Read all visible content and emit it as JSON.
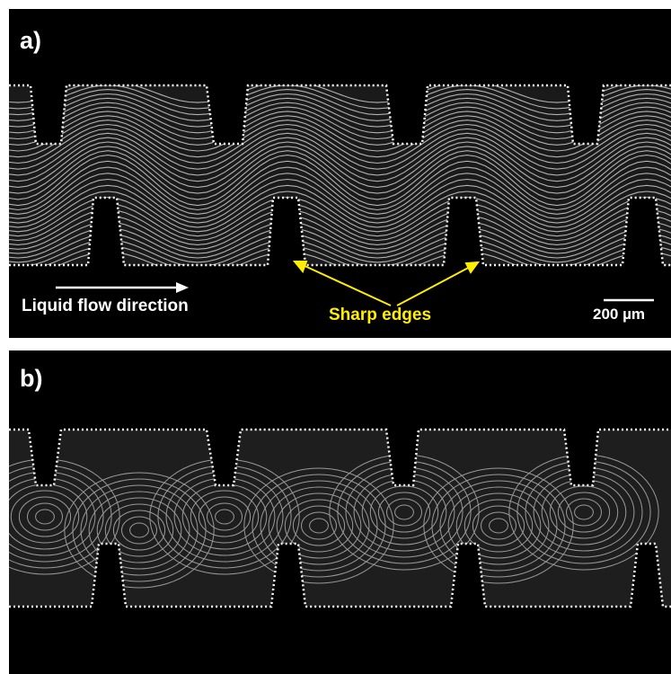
{
  "panels": [
    {
      "label": "a)",
      "annotations": {
        "flow_direction": "Liquid flow direction",
        "sharp_edges": "Sharp edges",
        "scale_bar": "200 µm"
      },
      "colors": {
        "annotation_highlight": "#ffee00",
        "streak": "#d8d8d8",
        "boundary": "#ffffff"
      }
    },
    {
      "label": "b)",
      "colors": {
        "streak": "#cfcfcf",
        "boundary": "#ffffff"
      }
    }
  ]
}
